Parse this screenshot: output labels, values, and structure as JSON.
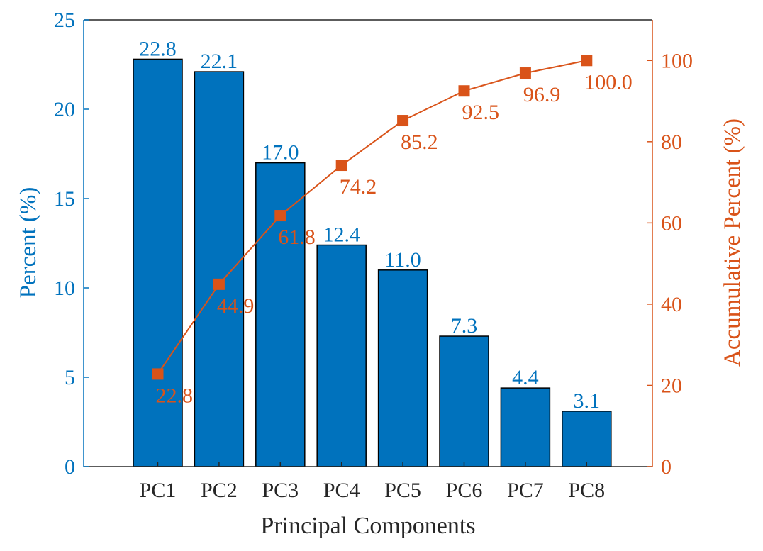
{
  "chart_data": {
    "type": "bar",
    "title": "",
    "xlabel": "Principal Components",
    "ylabel": "Percent (%)",
    "y2label": "Accumulative Percent (%)",
    "categories": [
      "PC1",
      "PC2",
      "PC3",
      "PC4",
      "PC5",
      "PC6",
      "PC7",
      "PC8"
    ],
    "series": [
      {
        "name": "Percent",
        "type": "bar",
        "axis": "left",
        "values": [
          22.8,
          22.1,
          17.0,
          12.4,
          11.0,
          7.3,
          4.4,
          3.1
        ],
        "labels": [
          "22.8",
          "22.1",
          "17.0",
          "12.4",
          "11.0",
          "7.3",
          "4.4",
          "3.1"
        ]
      },
      {
        "name": "Accumulative Percent",
        "type": "line",
        "marker": "square",
        "axis": "right",
        "values": [
          22.8,
          44.9,
          61.8,
          74.2,
          85.2,
          92.5,
          96.9,
          100.0
        ],
        "labels": [
          "22.8",
          "44.9",
          "61.8",
          "74.2",
          "85.2",
          "92.5",
          "96.9",
          "100.0"
        ]
      }
    ],
    "ylim": [
      0,
      25
    ],
    "y2lim": [
      0,
      110
    ],
    "yticks": [
      "0",
      "5",
      "10",
      "15",
      "20",
      "25"
    ],
    "y2ticks": [
      "0",
      "20",
      "40",
      "60",
      "80",
      "100"
    ],
    "grid": false,
    "colors": {
      "bar": "#0072BD",
      "line": "#D95319",
      "axis": "#262626"
    }
  }
}
